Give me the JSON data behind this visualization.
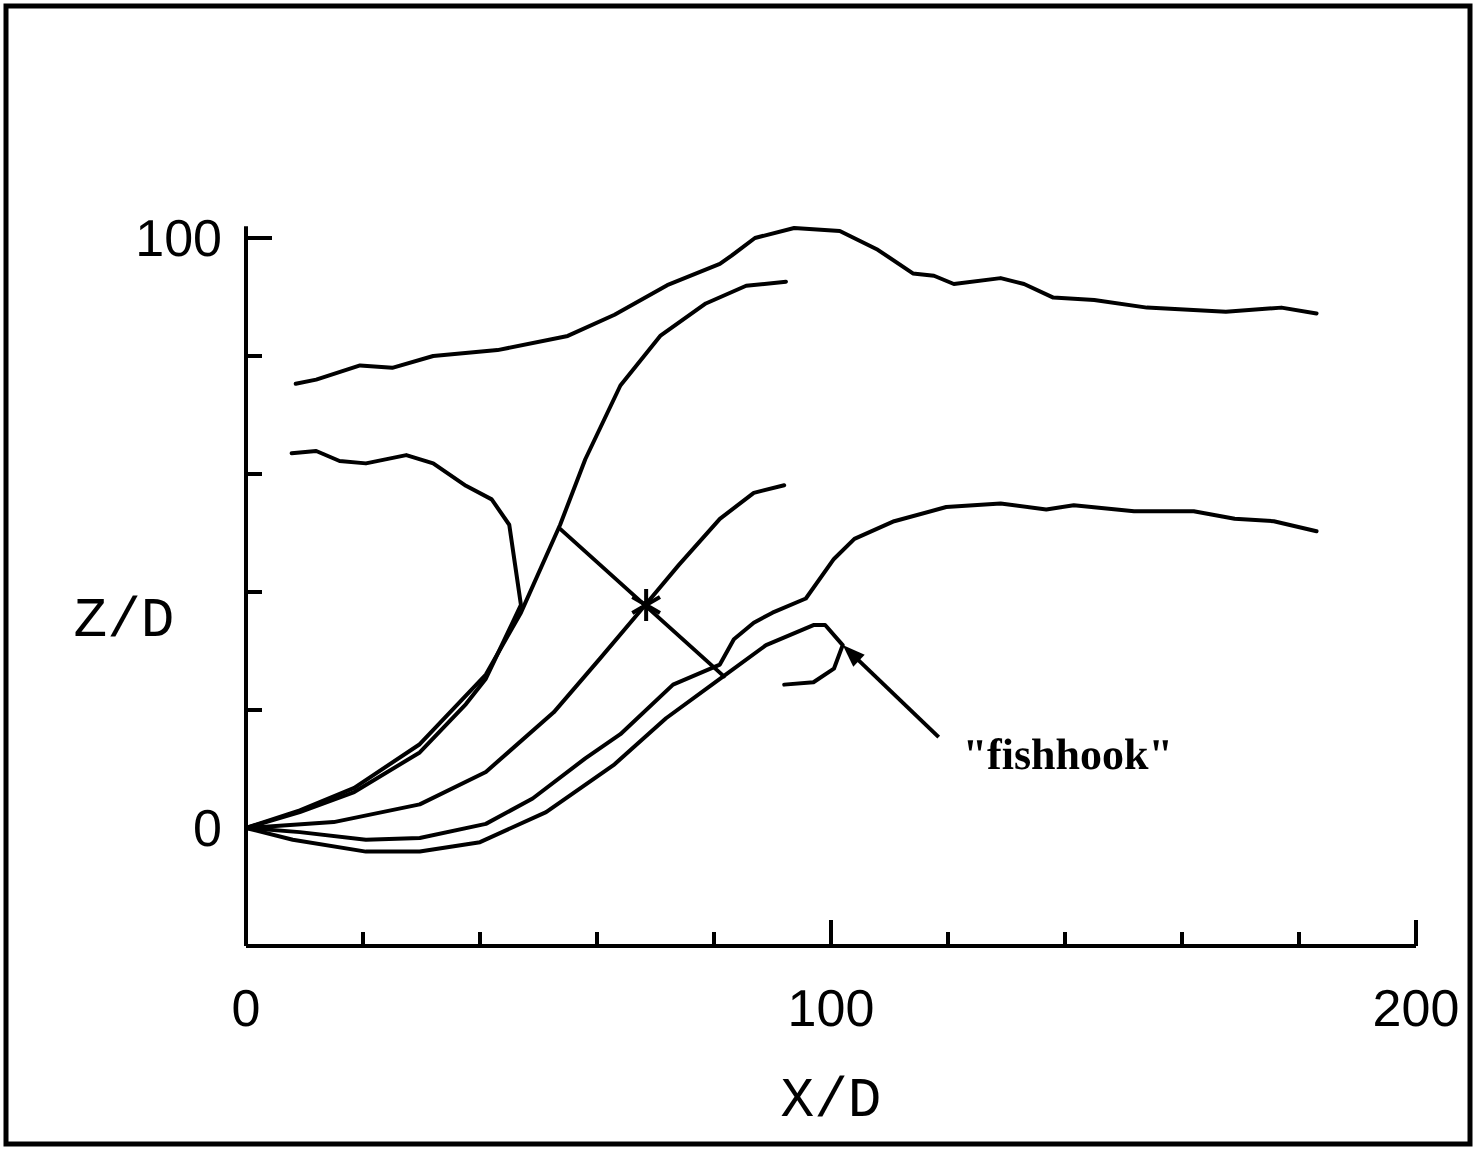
{
  "chart_data": {
    "type": "line",
    "xlabel": "X/D",
    "ylabel": "Z/D",
    "xlim": [
      0,
      200
    ],
    "ylim": [
      -20,
      102
    ],
    "xticks": [
      0,
      {
        "value": 20,
        "label": null
      },
      {
        "value": 40,
        "label": null
      },
      {
        "value": 60,
        "label": null
      },
      {
        "value": 80,
        "label": null
      },
      100,
      {
        "value": 120,
        "label": null
      },
      {
        "value": 140,
        "label": null
      },
      {
        "value": 160,
        "label": null
      },
      {
        "value": 180,
        "label": null
      },
      200
    ],
    "yticks": [
      0,
      {
        "value": 20,
        "label": null
      },
      {
        "value": 40,
        "label": null
      },
      {
        "value": 60,
        "label": null
      },
      {
        "value": 80,
        "label": null
      },
      100
    ],
    "marker": "none",
    "line_style": "solid",
    "series": [
      {
        "color": "#000000",
        "x": [
          8.5,
          12,
          19.5,
          25,
          32,
          43,
          55,
          63,
          72,
          81,
          83,
          87,
          93.7,
          101.5,
          108,
          114,
          117.6,
          121,
          129,
          133,
          138,
          145,
          154,
          167.5,
          177,
          183
        ],
        "values": [
          75.3,
          76,
          78.4,
          78,
          80,
          81,
          83.4,
          87,
          92,
          95.6,
          97,
          100,
          101.7,
          101.2,
          98,
          94,
          93.6,
          92.2,
          93.2,
          92.2,
          89.9,
          89.5,
          88.2,
          87.5,
          88.2,
          87.2
        ]
      },
      {
        "color": "#000000",
        "x": [
          7.8,
          12,
          16,
          20.5,
          27.4,
          32,
          37.6,
          42,
          45,
          46,
          47,
          41,
          37.6,
          29.7,
          18.5,
          9.2,
          0
        ],
        "values": [
          63.5,
          63.9,
          62.2,
          61.8,
          63.2,
          61.8,
          58,
          55.7,
          51.4,
          44.6,
          37.8,
          25.3,
          21,
          12.8,
          6.1,
          2.7,
          0
        ]
      },
      {
        "color": "#000000",
        "x": [
          0,
          9.2,
          18.5,
          29.7,
          41,
          47,
          53.7,
          58,
          64,
          70.8,
          78.6,
          85.5,
          92.3
        ],
        "values": [
          0,
          3,
          6.8,
          14.2,
          26,
          36.5,
          51.4,
          62.5,
          75,
          83.4,
          88.9,
          91.9,
          92.6
        ]
      },
      {
        "color": "#000000",
        "x": [
          0,
          15,
          29.7,
          41,
          52.6,
          60.5,
          68,
          74,
          81,
          86.8,
          92
        ],
        "values": [
          0,
          1,
          4,
          9.5,
          19.6,
          28.7,
          37.5,
          44.6,
          52.4,
          56.8,
          58.1
        ]
      },
      {
        "color": "#000000",
        "x": [
          0,
          9.2,
          20.5,
          29.7,
          41,
          49,
          58,
          64,
          73,
          81,
          83.4,
          86.8,
          90,
          95.7,
          100.5,
          104,
          110.8,
          119.7,
          129,
          136.8,
          141.5,
          151.8,
          162,
          169,
          175.7,
          183
        ],
        "values": [
          0,
          -0.7,
          -2,
          -1.7,
          0.7,
          5,
          11.8,
          15.9,
          24.3,
          27.7,
          32,
          34.8,
          36.5,
          38.9,
          45.6,
          49,
          52,
          54.4,
          55,
          54,
          54.7,
          53.7,
          53.7,
          52.4,
          52,
          50.3
        ]
      },
      {
        "color": "#000000",
        "x": [
          0,
          8,
          20.5,
          29.7,
          40,
          51.3,
          63,
          71.8,
          82,
          88.9,
          97,
          99,
          102,
          100.5,
          97,
          92
        ],
        "values": [
          0,
          -2,
          -4,
          -4,
          -2.4,
          2.7,
          10.8,
          18.6,
          26,
          31,
          34.4,
          34.4,
          31,
          27,
          24.7,
          24.3
        ]
      },
      {
        "color": "#000000",
        "x": [
          53.7,
          81.7
        ],
        "values": [
          50.7,
          25.7
        ]
      },
      {
        "type": "scatter",
        "marker": "cross",
        "color": "#000000",
        "x": [
          68.4
        ],
        "values": [
          37.8
        ]
      }
    ],
    "annotations": [
      {
        "text": "\"fishhook\"",
        "x": 102,
        "y": 31
      }
    ]
  }
}
